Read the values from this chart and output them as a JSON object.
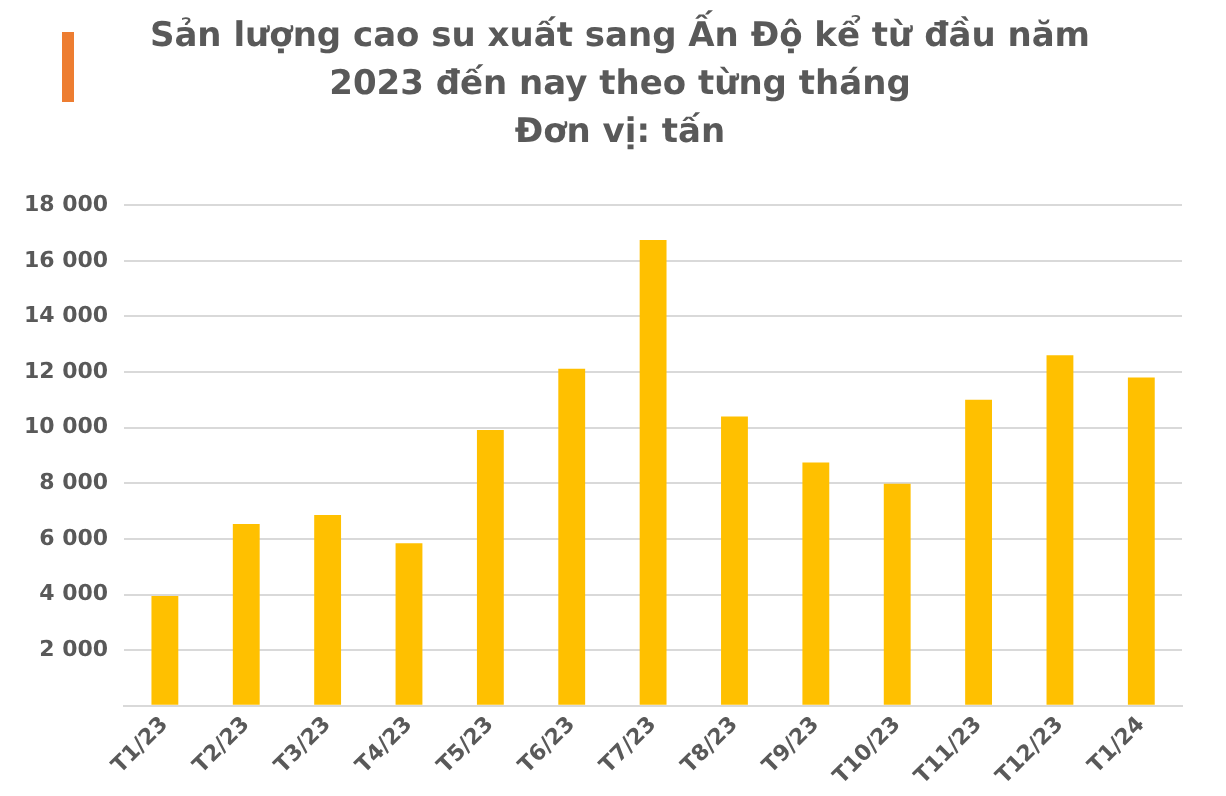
{
  "chart_data": {
    "type": "bar",
    "title": "Sản lượng cao su xuất sang Ấn Độ kể từ đầu năm 2023 đến nay theo từng tháng",
    "subtitle": "Đơn vị: tấn",
    "categories": [
      "T1/23",
      "T2/23",
      "T3/23",
      "T4/23",
      "T5/23",
      "T6/23",
      "T7/23",
      "T8/23",
      "T9/23",
      "T10/23",
      "T11/23",
      "T12/23",
      "T1/24"
    ],
    "values": [
      3950,
      6540,
      6860,
      5840,
      9920,
      12120,
      16750,
      10400,
      8750,
      7980,
      11000,
      12600,
      11800
    ],
    "color": "#ffc000",
    "ylim": [
      0,
      18000
    ],
    "yticks": [
      {
        "value": 0,
        "label": null
      },
      {
        "value": 2000,
        "label": "2 000"
      },
      {
        "value": 4000,
        "label": "4 000"
      },
      {
        "value": 6000,
        "label": "6 000"
      },
      {
        "value": 8000,
        "label": "8 000"
      },
      {
        "value": 10000,
        "label": "10 000"
      },
      {
        "value": 12000,
        "label": "12 000"
      },
      {
        "value": 14000,
        "label": "14 000"
      },
      {
        "value": 16000,
        "label": "16 000"
      },
      {
        "value": 18000,
        "label": "18 000"
      }
    ],
    "grid": "y"
  }
}
